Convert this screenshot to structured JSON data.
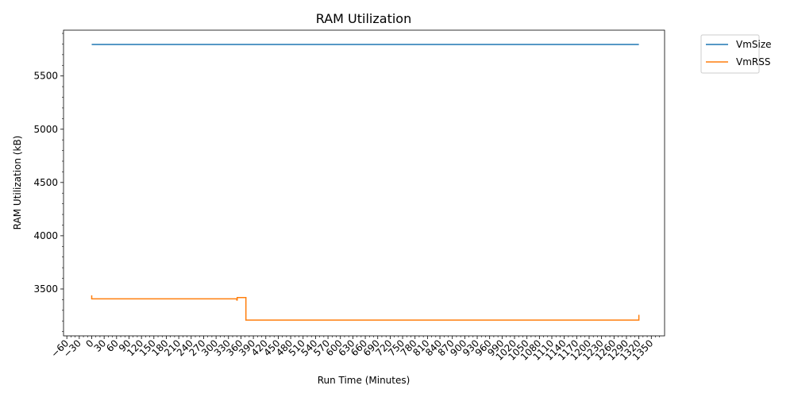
{
  "chart_data": {
    "type": "line",
    "title": "RAM Utilization",
    "xlabel": "Run Time (Minutes)",
    "ylabel": "RAM Utilization (kB)",
    "xlim": [
      -68,
      1382
    ],
    "ylim": [
      3060,
      5930
    ],
    "x_ticks": [
      -60,
      -30,
      0,
      30,
      60,
      90,
      120,
      150,
      180,
      210,
      240,
      270,
      300,
      330,
      360,
      390,
      420,
      450,
      480,
      510,
      540,
      570,
      600,
      630,
      660,
      690,
      720,
      750,
      780,
      810,
      840,
      870,
      900,
      930,
      960,
      990,
      1020,
      1050,
      1080,
      1110,
      1140,
      1170,
      1200,
      1230,
      1260,
      1290,
      1320,
      1350
    ],
    "y_ticks": [
      3500,
      4000,
      4500,
      5000,
      5500
    ],
    "grid": false,
    "legend_position": "outside-top-right",
    "series": [
      {
        "name": "VmSize",
        "color": "#1f77b4",
        "points": [
          [
            0,
            5796
          ],
          [
            1320,
            5796
          ]
        ]
      },
      {
        "name": "VmRSS",
        "color": "#ff7f0e",
        "points": [
          [
            0,
            3440
          ],
          [
            0,
            3408
          ],
          [
            350,
            3408
          ],
          [
            350,
            3396
          ],
          [
            351,
            3396
          ],
          [
            351,
            3420
          ],
          [
            372,
            3420
          ],
          [
            372,
            3208
          ],
          [
            1320,
            3208
          ],
          [
            1320,
            3258
          ]
        ]
      }
    ]
  }
}
